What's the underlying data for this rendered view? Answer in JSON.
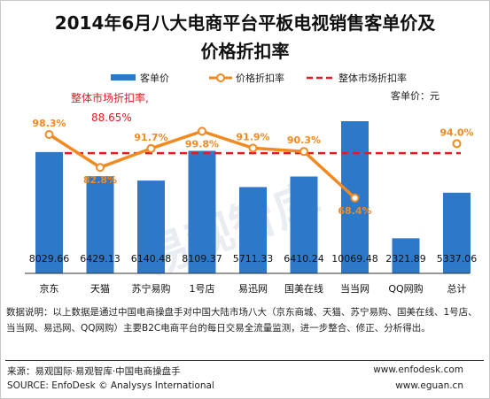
{
  "title": {
    "line1": "2014年6月八大电商平台平板电视销售客单价及",
    "line2": "价格折扣率"
  },
  "legend": {
    "bar": "客单价",
    "line": "价格折扣率",
    "overall": "整体市场折扣率"
  },
  "unit_label": "客单价：元",
  "overall_annotation": {
    "label": "整体市场折扣率,",
    "value": "88.65%"
  },
  "watermark": "易观智库",
  "chart_data": {
    "type": "bar",
    "categories": [
      "京东",
      "天猫",
      "苏宁易购",
      "1号店",
      "易迅网",
      "国美在线",
      "当当网",
      "QQ网购",
      "总计"
    ],
    "series": [
      {
        "name": "客单价",
        "type": "bar",
        "values": [
          8029.66,
          6429.13,
          6140.48,
          8109.37,
          5711.33,
          6410.24,
          10069.48,
          2321.89,
          5337.06
        ],
        "labels": [
          "8029.66",
          "6429.13",
          "6140.48",
          "8109.37",
          "5711.33",
          "6410.24",
          "10069.48",
          "2321.89",
          "5337.06"
        ],
        "color": "#2e78c8"
      },
      {
        "name": "价格折扣率",
        "type": "line",
        "values": [
          98.3,
          82.8,
          91.7,
          99.8,
          91.9,
          90.3,
          68.4,
          null,
          94.0
        ],
        "labels": [
          "98.3%",
          "82.8%",
          "91.7%",
          "99.8%",
          "91.9%",
          "90.3%",
          "68.4%",
          "",
          "94.0%"
        ],
        "color": "#f28a21"
      },
      {
        "name": "整体市场折扣率",
        "type": "reference-line",
        "value": 88.65,
        "color": "#e31b23"
      }
    ],
    "bar_ylim": [
      0,
      11000
    ],
    "line_ylim": [
      40,
      115
    ],
    "grid": false,
    "legend_position": "top"
  },
  "note": "数据说明：以上数据是通过中国电商操盘手对中国大陆市场八大（京东商城、天猫、苏宁易购、国美在线、1号店、当当网、易迅网、QQ网购）主要B2C电商平台的每日交易全流量监测，进一步整合、修正、分析得出。",
  "footer": {
    "source_cn": "来源：易观国际·易观智库·中国电商操盘手",
    "source_en": "SOURCE: EnfoDesk © Analysys International",
    "url1": "www.enfodesk.com",
    "url2": "www.eguan.cn"
  },
  "colors": {
    "bar": "#2e78c8",
    "line": "#f28a21",
    "overall": "#e31b23",
    "axis": "#333333"
  }
}
